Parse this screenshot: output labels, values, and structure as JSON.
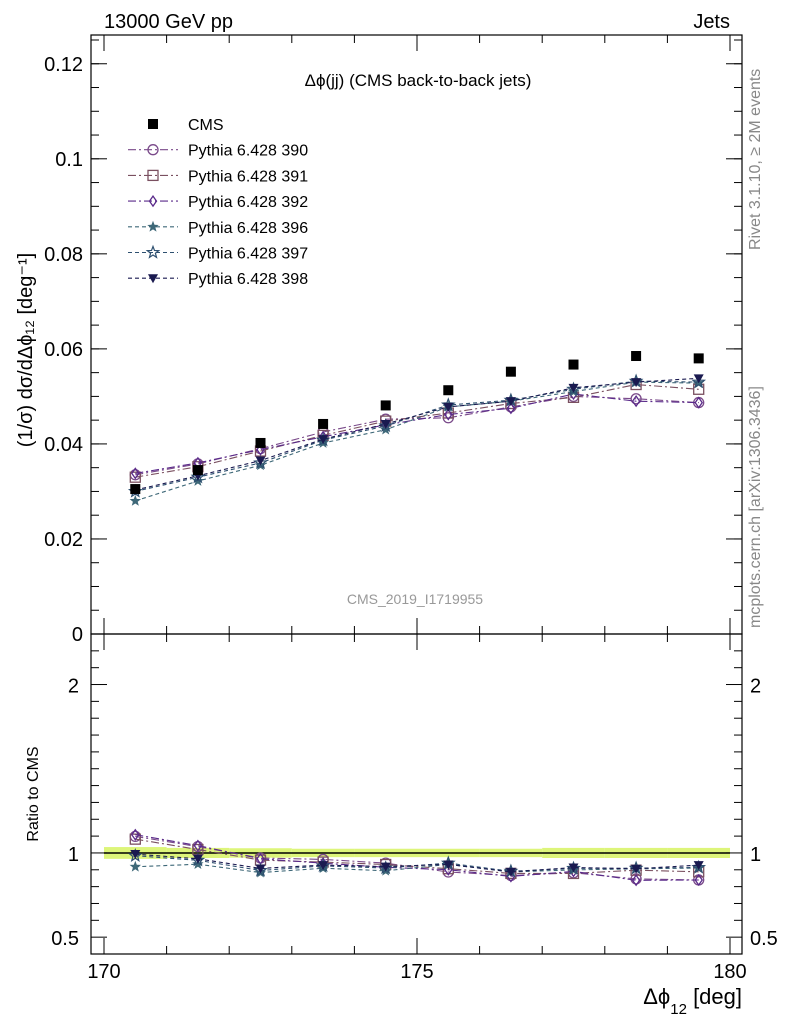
{
  "header": {
    "left": "13000 GeV pp",
    "right": "Jets"
  },
  "side_labels": {
    "rivet": "Rivet 3.1.10, ≥ 2M events",
    "mcplots": "mcplots.cern.ch [arXiv:1306.3436]"
  },
  "chart_data": {
    "type": "line",
    "title": "Δϕ(jj) (CMS back-to-back jets)",
    "analysis_id": "CMS_2019_I1719955",
    "xlabel": "Δϕ",
    "xlabel_sub": "12",
    "xlabel_unit": " [deg]",
    "ylabel": "(1/σ) dσ/dΔϕ₁₂ [deg⁻¹]",
    "xlim": [
      170,
      180
    ],
    "ylim": [
      0,
      0.125
    ],
    "x_ticks": [
      170,
      175,
      180
    ],
    "x_tick_labels": [
      "170",
      "175",
      "180"
    ],
    "y_ticks": [
      0,
      0.02,
      0.04,
      0.06,
      0.08,
      0.1,
      0.12
    ],
    "y_tick_labels": [
      "0",
      "0.02",
      "0.04",
      "0.06",
      "0.08",
      "0.1",
      "0.12"
    ],
    "legend_position": "top-left",
    "x": [
      170.5,
      171.5,
      172.5,
      173.5,
      174.5,
      175.5,
      176.5,
      177.5,
      178.5,
      179.5
    ],
    "data_series": {
      "name": "CMS",
      "marker": "square",
      "color": "#000000",
      "values": [
        0.0305,
        0.0345,
        0.0402,
        0.0442,
        0.0481,
        0.0513,
        0.0552,
        0.0567,
        0.0585,
        0.058
      ]
    },
    "series": [
      {
        "name": "Pythia 6.428 390",
        "color": "#7a4a8a",
        "marker": "circle-open",
        "dash": "8,3,2,3",
        "values": [
          0.0335,
          0.0358,
          0.039,
          0.0425,
          0.0452,
          0.0455,
          0.0478,
          0.05,
          0.0495,
          0.0487
        ]
      },
      {
        "name": "Pythia 6.428 391",
        "color": "#7a5060",
        "marker": "square-open",
        "dash": "8,3,2,3",
        "values": [
          0.033,
          0.0352,
          0.0385,
          0.0418,
          0.0448,
          0.0465,
          0.0485,
          0.0498,
          0.0525,
          0.0515
        ]
      },
      {
        "name": "Pythia 6.428 392",
        "color": "#5a2a8a",
        "marker": "diamond-open",
        "dash": "8,3,2,3",
        "values": [
          0.0338,
          0.036,
          0.0388,
          0.0415,
          0.044,
          0.0462,
          0.0475,
          0.0505,
          0.049,
          0.0487
        ]
      },
      {
        "name": "Pythia 6.428 396",
        "color": "#3e6878",
        "marker": "star-filled",
        "dash": "4,3",
        "values": [
          0.028,
          0.0322,
          0.0355,
          0.0402,
          0.043,
          0.0478,
          0.049,
          0.051,
          0.053,
          0.0528
        ]
      },
      {
        "name": "Pythia 6.428 397",
        "color": "#2e5070",
        "marker": "star-open",
        "dash": "4,3",
        "values": [
          0.03,
          0.033,
          0.036,
          0.0408,
          0.0438,
          0.0482,
          0.0492,
          0.0515,
          0.0532,
          0.053
        ]
      },
      {
        "name": "Pythia 6.428 398",
        "color": "#1a1a50",
        "marker": "triangle-down-filled",
        "dash": "4,3",
        "values": [
          0.0303,
          0.0333,
          0.0365,
          0.041,
          0.0442,
          0.0478,
          0.049,
          0.0518,
          0.053,
          0.0538
        ]
      }
    ],
    "ratio": {
      "ylabel": "Ratio to CMS",
      "ylim": [
        0.4,
        2.3
      ],
      "y_ticks": [
        0.5,
        1,
        2
      ],
      "y_tick_labels": [
        "0.5",
        "1",
        "2"
      ],
      "band_color": "#ddf57a",
      "band_half_width": [
        0.035,
        0.03,
        0.028,
        0.025,
        0.025,
        0.025,
        0.025,
        0.03,
        0.03,
        0.03
      ]
    }
  }
}
